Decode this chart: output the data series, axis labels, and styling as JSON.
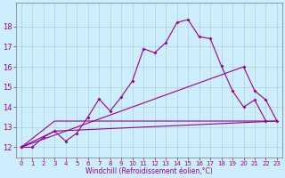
{
  "xlabel": "Windchill (Refroidissement éolien,°C)",
  "bg_color": "#cceeff",
  "line_color": "#990099",
  "grid_color": "#aaccbb",
  "xlim": [
    -0.5,
    23.5
  ],
  "ylim": [
    11.5,
    19.2
  ],
  "yticks": [
    12,
    13,
    14,
    15,
    16,
    17,
    18
  ],
  "xticks": [
    0,
    1,
    2,
    3,
    4,
    5,
    6,
    7,
    8,
    9,
    10,
    11,
    12,
    13,
    14,
    15,
    16,
    17,
    18,
    19,
    20,
    21,
    22,
    23
  ],
  "series": [
    {
      "x": [
        0,
        1,
        2,
        3,
        4,
        5,
        6,
        7,
        8,
        9,
        10,
        11,
        12,
        13,
        14,
        15,
        16,
        17,
        18,
        19,
        20,
        21,
        22
      ],
      "y": [
        12.0,
        12.0,
        12.5,
        12.8,
        12.3,
        12.7,
        13.5,
        14.4,
        13.8,
        14.5,
        15.3,
        16.9,
        16.7,
        17.2,
        18.2,
        18.35,
        17.5,
        17.4,
        16.05,
        14.8,
        14.0,
        14.35,
        13.3
      ],
      "marker": true
    },
    {
      "x": [
        0,
        20,
        21,
        22,
        23
      ],
      "y": [
        12.0,
        16.0,
        14.8,
        14.35,
        13.3
      ],
      "marker": true
    },
    {
      "x": [
        0,
        3,
        23
      ],
      "y": [
        12.0,
        13.3,
        13.3
      ],
      "marker": false
    },
    {
      "x": [
        0,
        3,
        23
      ],
      "y": [
        12.0,
        12.8,
        13.3
      ],
      "marker": false
    }
  ]
}
